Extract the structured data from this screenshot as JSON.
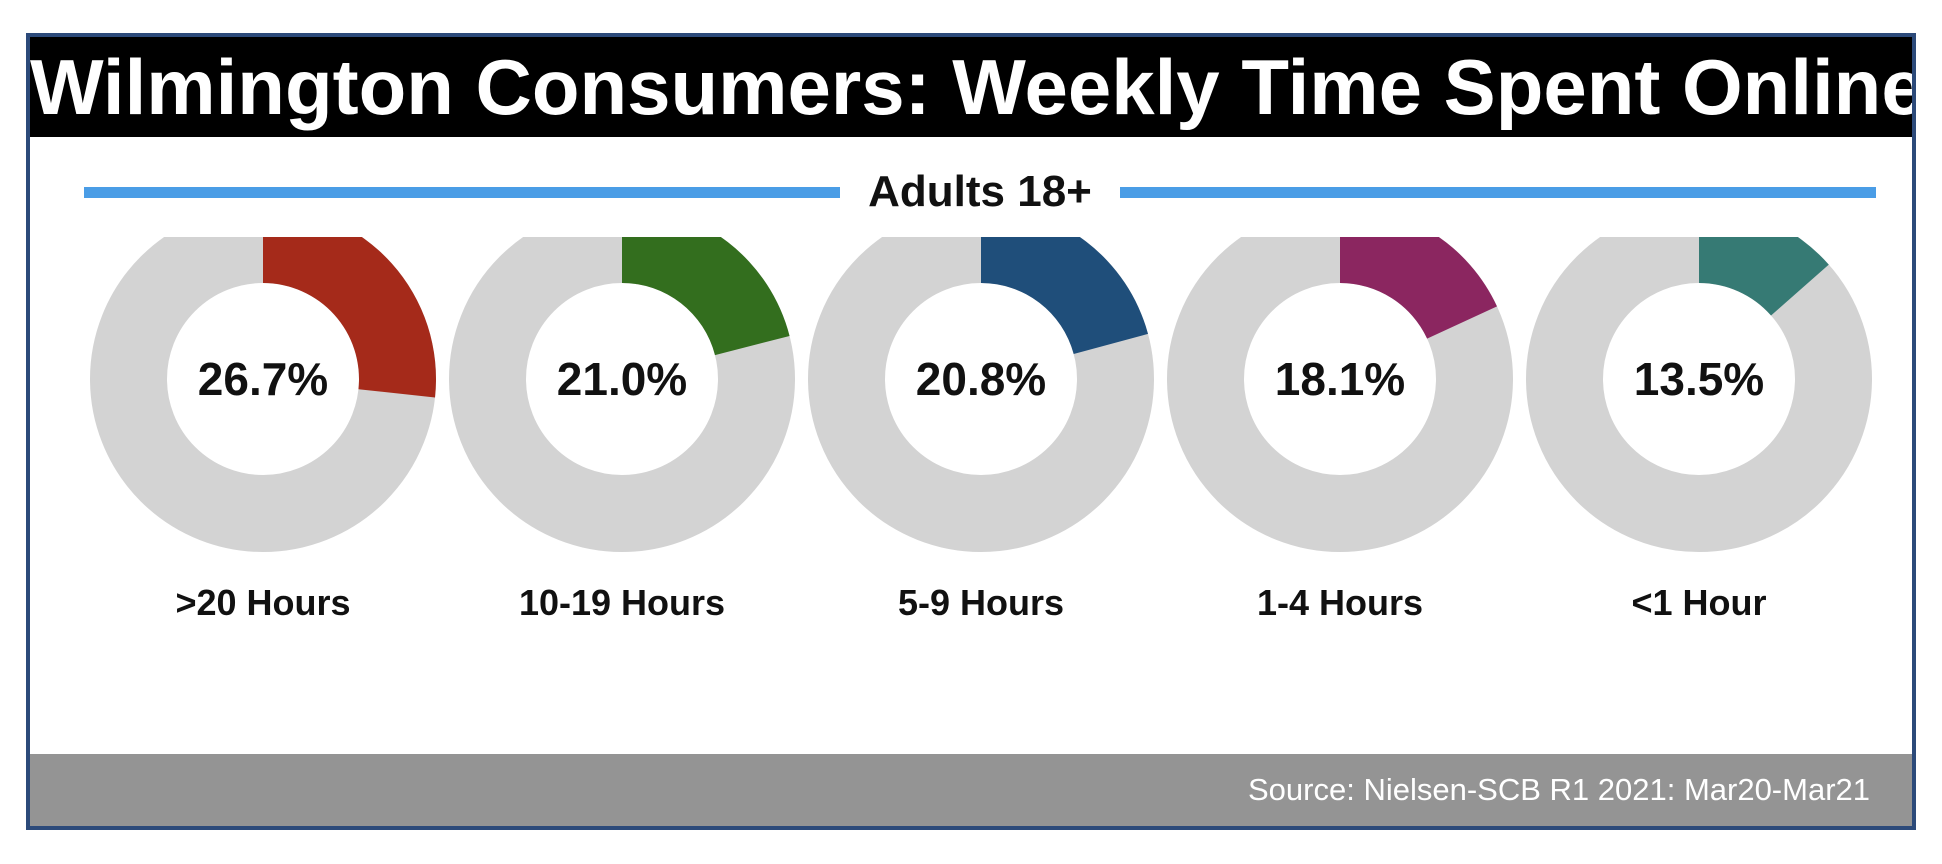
{
  "title": "Wilmington Consumers: Weekly Time Spent Online",
  "subtitle": "Adults 18+",
  "source": "Source: Nielsen-SCB R1 2021: Mar20-Mar21",
  "colors": {
    "track": "#d3d3d3",
    "accent_rule": "#4a9de6",
    "title_bg": "#000000",
    "source_bg": "#949494",
    "frame_border": "#2c4a7a"
  },
  "chart_data": {
    "type": "pie",
    "variant": "donut",
    "series": [
      {
        "label": ">20 Hours",
        "value": 26.7,
        "value_label": "26.7%",
        "color": "#a52a1a"
      },
      {
        "label": "10-19 Hours",
        "value": 21.0,
        "value_label": "21.0%",
        "color": "#336e1e"
      },
      {
        "label": "5-9 Hours",
        "value": 20.8,
        "value_label": "20.8%",
        "color": "#1f4e7a"
      },
      {
        "label": "1-4 Hours",
        "value": 18.1,
        "value_label": "18.1%",
        "color": "#8b2660"
      },
      {
        "label": "<1 Hour",
        "value": 13.5,
        "value_label": "13.5%",
        "color": "#367a74"
      }
    ]
  }
}
